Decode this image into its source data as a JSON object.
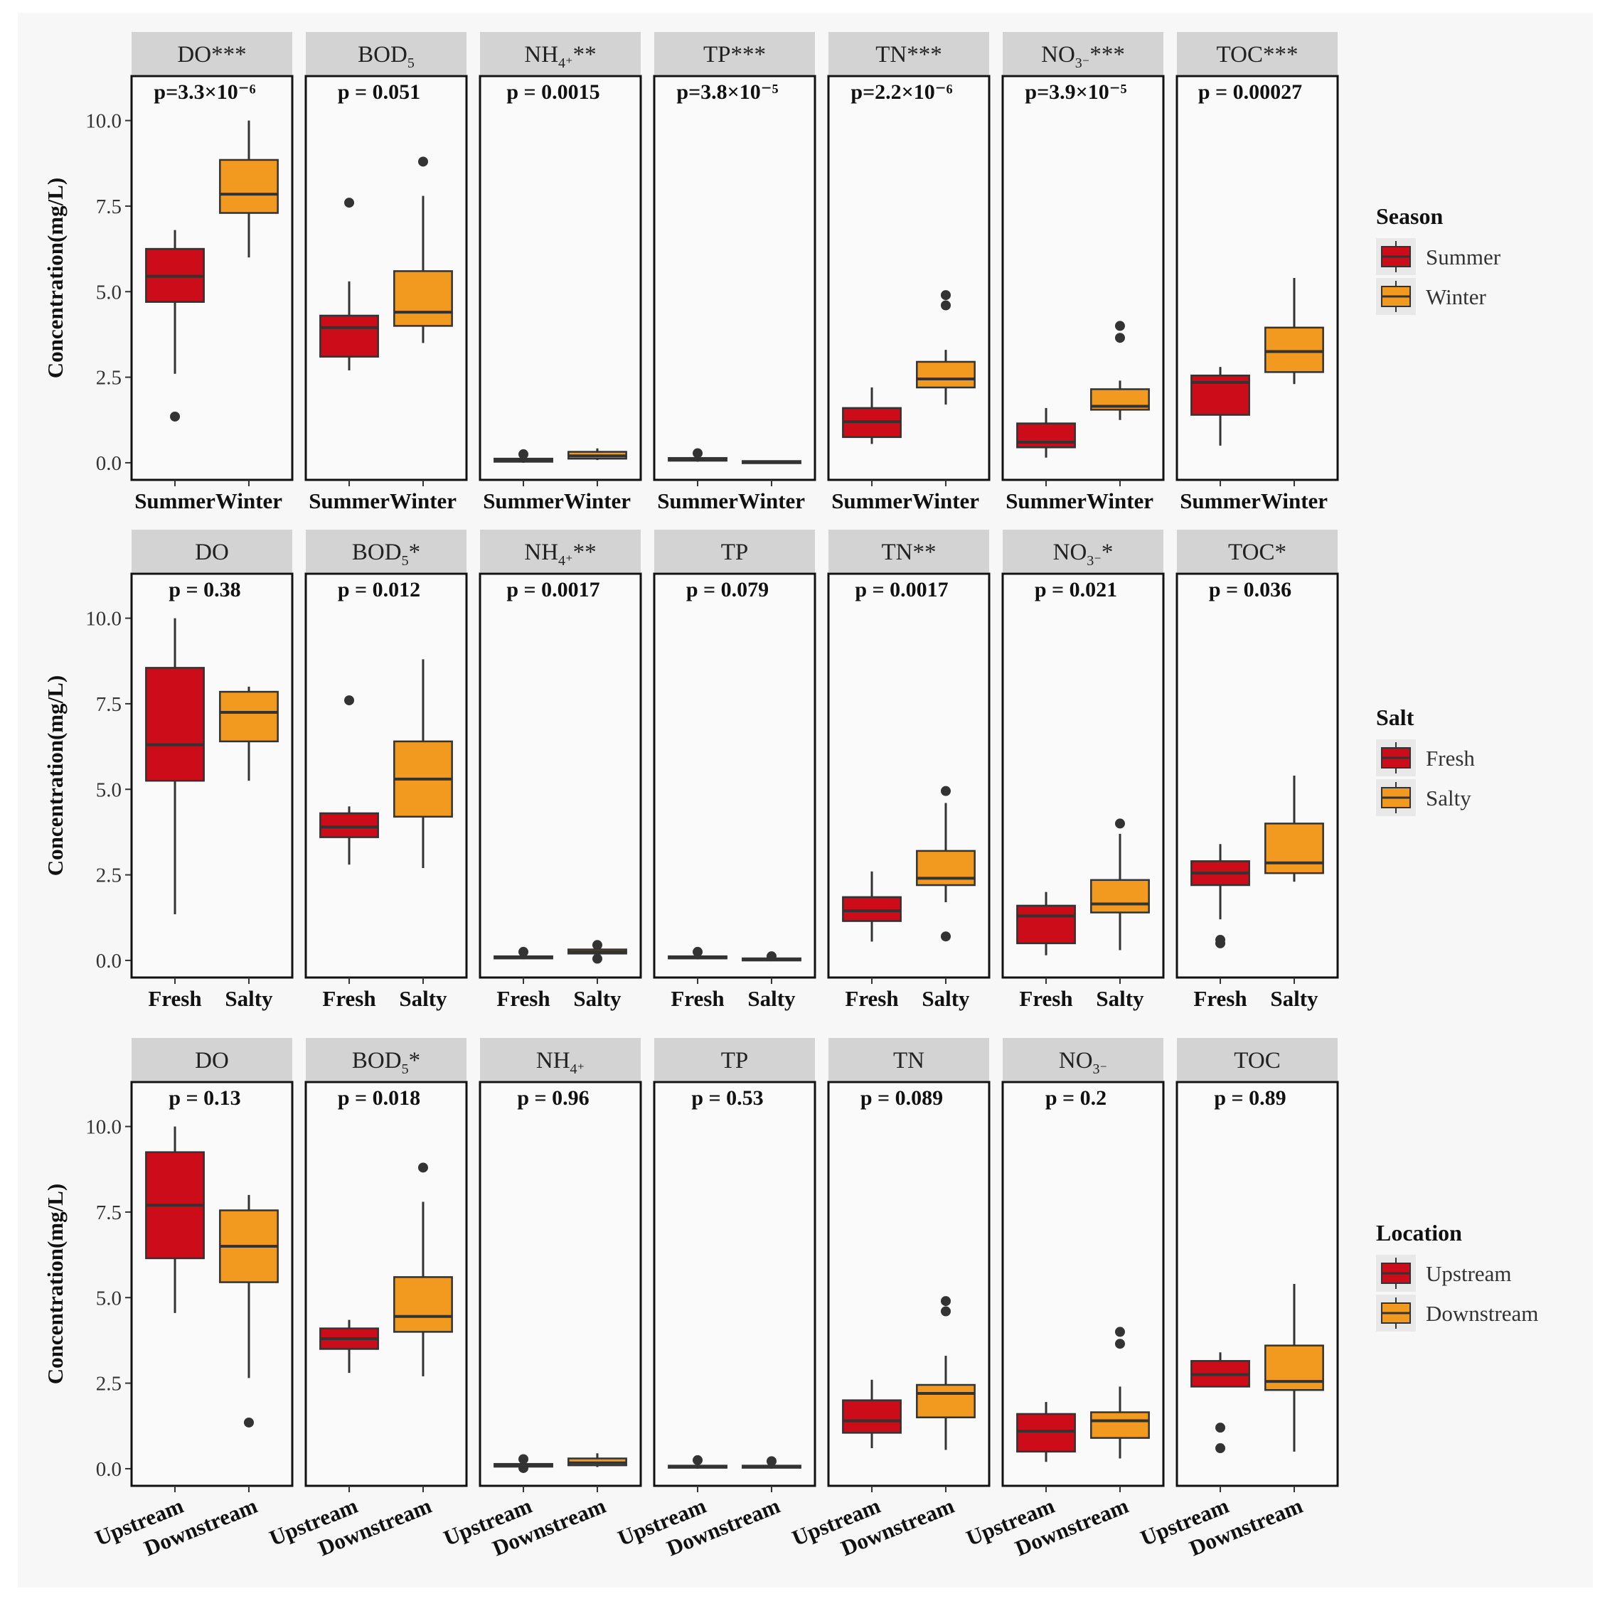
{
  "chart_data": {
    "type": "boxplot",
    "ylabel": "Concentration(mg/L)",
    "ylim": [
      -0.5,
      11.3
    ],
    "yticks": [
      "0.0",
      "2.5",
      "5.0",
      "7.5",
      "10.0"
    ],
    "tick_values": [
      0,
      2.5,
      5,
      7.5,
      10
    ],
    "colors": {
      "group1": "#cc0c19",
      "group2": "#f29a1f",
      "strip": "#d3d3d3",
      "panel": "#fafafa"
    },
    "rows": [
      {
        "legend_title": "Season",
        "groups": [
          "Summer",
          "Winter"
        ],
        "rotate_x": false,
        "panels": [
          {
            "sup": "",
            "title_before": "DO",
            "title_after": "***",
            "p": "p=3.3×10⁻⁶",
            "boxes": [
              {
                "wl": 2.6,
                "q1": 4.7,
                "med": 5.45,
                "q3": 6.25,
                "wh": 6.8,
                "out": [
                  1.35
                ]
              },
              {
                "wl": 6.0,
                "q1": 7.3,
                "med": 7.85,
                "q3": 8.85,
                "wh": 10.0,
                "out": []
              }
            ]
          },
          {
            "sup": "5",
            "title_before": "BOD",
            "title_after": "",
            "p": "p = 0.051",
            "boxes": [
              {
                "wl": 2.7,
                "q1": 3.1,
                "med": 3.95,
                "q3": 4.3,
                "wh": 5.3,
                "out": [
                  7.6
                ]
              },
              {
                "wl": 3.5,
                "q1": 4.0,
                "med": 4.4,
                "q3": 5.6,
                "wh": 7.8,
                "out": [
                  8.8
                ]
              }
            ]
          },
          {
            "sup": "4⁺",
            "title_before": "NH",
            "title_after": "**",
            "p": "p = 0.0015",
            "boxes": [
              {
                "wl": 0.0,
                "q1": 0.03,
                "med": 0.07,
                "q3": 0.12,
                "wh": 0.2,
                "out": [
                  0.25
                ]
              },
              {
                "wl": 0.08,
                "q1": 0.12,
                "med": 0.2,
                "q3": 0.32,
                "wh": 0.42,
                "out": []
              }
            ]
          },
          {
            "sup": "",
            "title_before": "TP",
            "title_after": "***",
            "p": "p=3.8×10⁻⁵",
            "boxes": [
              {
                "wl": 0.03,
                "q1": 0.06,
                "med": 0.1,
                "q3": 0.14,
                "wh": 0.2,
                "out": [
                  0.28
                ]
              },
              {
                "wl": 0.0,
                "q1": 0.01,
                "med": 0.03,
                "q3": 0.05,
                "wh": 0.07,
                "out": []
              }
            ]
          },
          {
            "sup": "",
            "title_before": "TN",
            "title_after": "***",
            "p": "p=2.2×10⁻⁶",
            "boxes": [
              {
                "wl": 0.55,
                "q1": 0.75,
                "med": 1.2,
                "q3": 1.6,
                "wh": 2.2,
                "out": []
              },
              {
                "wl": 1.7,
                "q1": 2.2,
                "med": 2.45,
                "q3": 2.95,
                "wh": 3.3,
                "out": [
                  4.6,
                  4.9
                ]
              }
            ]
          },
          {
            "sup": "3⁻",
            "title_before": "NO",
            "title_after": "***",
            "p": "p=3.9×10⁻⁵",
            "boxes": [
              {
                "wl": 0.15,
                "q1": 0.45,
                "med": 0.6,
                "q3": 1.15,
                "wh": 1.6,
                "out": []
              },
              {
                "wl": 1.25,
                "q1": 1.55,
                "med": 1.65,
                "q3": 2.15,
                "wh": 2.4,
                "out": [
                  3.65,
                  4.0
                ]
              }
            ]
          },
          {
            "sup": "",
            "title_before": "TOC",
            "title_after": "***",
            "p": "p = 0.00027",
            "boxes": [
              {
                "wl": 0.5,
                "q1": 1.4,
                "med": 2.35,
                "q3": 2.55,
                "wh": 2.8,
                "out": []
              },
              {
                "wl": 2.3,
                "q1": 2.65,
                "med": 3.25,
                "q3": 3.95,
                "wh": 5.4,
                "out": []
              }
            ]
          }
        ]
      },
      {
        "legend_title": "Salt",
        "groups": [
          "Fresh",
          "Salty"
        ],
        "rotate_x": false,
        "panels": [
          {
            "sup": "",
            "title_before": "DO",
            "title_after": "",
            "p": "p = 0.38",
            "boxes": [
              {
                "wl": 1.35,
                "q1": 5.25,
                "med": 6.3,
                "q3": 8.55,
                "wh": 10.0,
                "out": []
              },
              {
                "wl": 5.25,
                "q1": 6.4,
                "med": 7.25,
                "q3": 7.85,
                "wh": 8.0,
                "out": []
              }
            ]
          },
          {
            "sup": "5",
            "title_before": "BOD",
            "title_after": "*",
            "p": "p = 0.012",
            "boxes": [
              {
                "wl": 2.8,
                "q1": 3.6,
                "med": 3.9,
                "q3": 4.3,
                "wh": 4.5,
                "out": [
                  7.6
                ]
              },
              {
                "wl": 2.7,
                "q1": 4.2,
                "med": 5.3,
                "q3": 6.4,
                "wh": 8.8,
                "out": []
              }
            ]
          },
          {
            "sup": "4⁺",
            "title_before": "NH",
            "title_after": "**",
            "p": "p = 0.0017",
            "boxes": [
              {
                "wl": 0.03,
                "q1": 0.06,
                "med": 0.08,
                "q3": 0.12,
                "wh": 0.2,
                "out": [
                  0.25
                ]
              },
              {
                "wl": 0.15,
                "q1": 0.2,
                "med": 0.25,
                "q3": 0.32,
                "wh": 0.4,
                "out": [
                  0.05,
                  0.45
                ]
              }
            ]
          },
          {
            "sup": "",
            "title_before": "TP",
            "title_after": "",
            "p": "p = 0.079",
            "boxes": [
              {
                "wl": 0.03,
                "q1": 0.06,
                "med": 0.08,
                "q3": 0.12,
                "wh": 0.18,
                "out": [
                  0.25
                ]
              },
              {
                "wl": 0.0,
                "q1": 0.02,
                "med": 0.04,
                "q3": 0.06,
                "wh": 0.08,
                "out": [
                  0.12
                ]
              }
            ]
          },
          {
            "sup": "",
            "title_before": "TN",
            "title_after": "**",
            "p": "p = 0.0017",
            "boxes": [
              {
                "wl": 0.55,
                "q1": 1.15,
                "med": 1.45,
                "q3": 1.85,
                "wh": 2.6,
                "out": []
              },
              {
                "wl": 1.7,
                "q1": 2.2,
                "med": 2.4,
                "q3": 3.2,
                "wh": 4.6,
                "out": [
                  0.7,
                  4.95
                ]
              }
            ]
          },
          {
            "sup": "3⁻",
            "title_before": "NO",
            "title_after": "*",
            "p": "p = 0.021",
            "boxes": [
              {
                "wl": 0.15,
                "q1": 0.5,
                "med": 1.3,
                "q3": 1.6,
                "wh": 2.0,
                "out": []
              },
              {
                "wl": 0.3,
                "q1": 1.4,
                "med": 1.65,
                "q3": 2.35,
                "wh": 3.7,
                "out": [
                  4.0
                ]
              }
            ]
          },
          {
            "sup": "",
            "title_before": "TOC",
            "title_after": "*",
            "p": "p = 0.036",
            "boxes": [
              {
                "wl": 1.2,
                "q1": 2.2,
                "med": 2.55,
                "q3": 2.9,
                "wh": 3.4,
                "out": [
                  0.5,
                  0.6
                ]
              },
              {
                "wl": 2.3,
                "q1": 2.55,
                "med": 2.85,
                "q3": 4.0,
                "wh": 5.4,
                "out": []
              }
            ]
          }
        ]
      },
      {
        "legend_title": "Location",
        "groups": [
          "Upstream",
          "Downstream"
        ],
        "rotate_x": true,
        "panels": [
          {
            "sup": "",
            "title_before": "DO",
            "title_after": "",
            "p": "p = 0.13",
            "boxes": [
              {
                "wl": 4.55,
                "q1": 6.15,
                "med": 7.7,
                "q3": 9.25,
                "wh": 10.0,
                "out": []
              },
              {
                "wl": 2.65,
                "q1": 5.45,
                "med": 6.5,
                "q3": 7.55,
                "wh": 8.0,
                "out": [
                  1.35
                ]
              }
            ]
          },
          {
            "sup": "5",
            "title_before": "BOD",
            "title_after": "*",
            "p": "p = 0.018",
            "boxes": [
              {
                "wl": 2.8,
                "q1": 3.5,
                "med": 3.8,
                "q3": 4.1,
                "wh": 4.35,
                "out": []
              },
              {
                "wl": 2.7,
                "q1": 4.0,
                "med": 4.45,
                "q3": 5.6,
                "wh": 7.8,
                "out": [
                  8.8
                ]
              }
            ]
          },
          {
            "sup": "4⁺",
            "title_before": "NH",
            "title_after": "",
            "p": "p = 0.96",
            "boxes": [
              {
                "wl": 0.03,
                "q1": 0.06,
                "med": 0.1,
                "q3": 0.14,
                "wh": 0.22,
                "out": [
                  0.02,
                  0.28
                ]
              },
              {
                "wl": 0.05,
                "q1": 0.1,
                "med": 0.17,
                "q3": 0.3,
                "wh": 0.45,
                "out": []
              }
            ]
          },
          {
            "sup": "",
            "title_before": "TP",
            "title_after": "",
            "p": "p = 0.53",
            "boxes": [
              {
                "wl": 0.0,
                "q1": 0.03,
                "med": 0.06,
                "q3": 0.09,
                "wh": 0.14,
                "out": [
                  0.25
                ]
              },
              {
                "wl": 0.0,
                "q1": 0.03,
                "med": 0.06,
                "q3": 0.09,
                "wh": 0.14,
                "out": [
                  0.22
                ]
              }
            ]
          },
          {
            "sup": "",
            "title_before": "TN",
            "title_after": "",
            "p": "p = 0.089",
            "boxes": [
              {
                "wl": 0.6,
                "q1": 1.05,
                "med": 1.4,
                "q3": 2.0,
                "wh": 2.6,
                "out": []
              },
              {
                "wl": 0.55,
                "q1": 1.5,
                "med": 2.2,
                "q3": 2.45,
                "wh": 3.3,
                "out": [
                  4.6,
                  4.9
                ]
              }
            ]
          },
          {
            "sup": "3⁻",
            "title_before": "NO",
            "title_after": "",
            "p": "p = 0.2",
            "boxes": [
              {
                "wl": 0.2,
                "q1": 0.5,
                "med": 1.1,
                "q3": 1.6,
                "wh": 1.95,
                "out": []
              },
              {
                "wl": 0.3,
                "q1": 0.9,
                "med": 1.4,
                "q3": 1.65,
                "wh": 2.4,
                "out": [
                  3.65,
                  4.0
                ]
              }
            ]
          },
          {
            "sup": "",
            "title_before": "TOC",
            "title_after": "",
            "p": "p = 0.89",
            "boxes": [
              {
                "wl": 2.4,
                "q1": 2.4,
                "med": 2.75,
                "q3": 3.15,
                "wh": 3.4,
                "out": [
                  0.6,
                  1.2
                ]
              },
              {
                "wl": 0.5,
                "q1": 2.3,
                "med": 2.55,
                "q3": 3.6,
                "wh": 5.4,
                "out": []
              }
            ]
          }
        ]
      }
    ]
  }
}
